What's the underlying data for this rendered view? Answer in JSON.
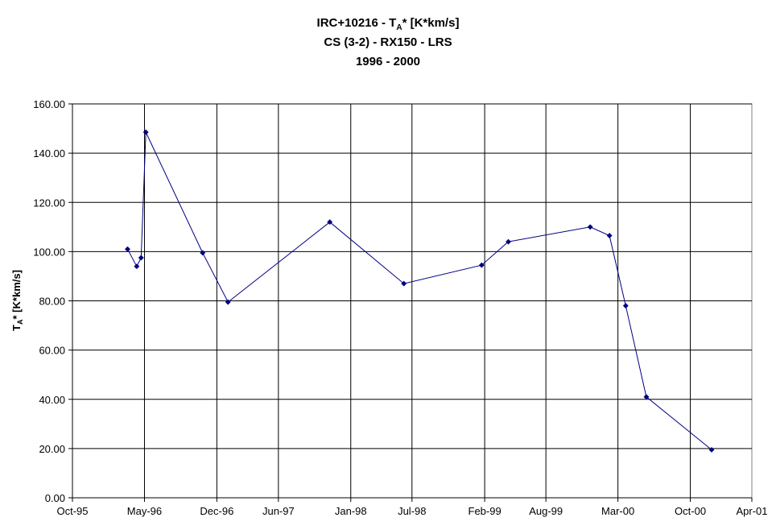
{
  "chart_data": {
    "type": "line",
    "title_lines": {
      "line1_prefix": "IRC+10216 - T",
      "line1_sub": "A",
      "line1_suffix": "* [K*km/s]",
      "line2": "CS (3-2) - RX150 - LRS",
      "line3": "1996 - 2000"
    },
    "ylabel": {
      "prefix": "T",
      "sub": "A",
      "suffix": "* [K*km/s]"
    },
    "xlabel": "",
    "x_tick_labels": [
      "Oct-95",
      "May-96",
      "Dec-96",
      "Jun-97",
      "Jan-98",
      "Jul-98",
      "Feb-99",
      "Aug-99",
      "Mar-00",
      "Oct-00",
      "Apr-01"
    ],
    "y_tick_labels": [
      "0.00",
      "20.00",
      "40.00",
      "60.00",
      "80.00",
      "100.00",
      "120.00",
      "140.00",
      "160.00"
    ],
    "ylim": [
      0,
      160
    ],
    "grid": true,
    "legend": "none",
    "series": [
      {
        "color": "#000080",
        "marker": "diamond",
        "points": [
          {
            "x": "1996-03-12",
            "y": 101.0
          },
          {
            "x": "1996-04-08",
            "y": 94.0
          },
          {
            "x": "1996-04-21",
            "y": 97.5
          },
          {
            "x": "1996-05-05",
            "y": 148.5
          },
          {
            "x": "1996-10-20",
            "y": 99.5
          },
          {
            "x": "1997-01-03",
            "y": 79.5
          },
          {
            "x": "1997-10-31",
            "y": 112.0
          },
          {
            "x": "1998-06-07",
            "y": 87.0
          },
          {
            "x": "1999-01-23",
            "y": 94.5
          },
          {
            "x": "1999-04-12",
            "y": 104.0
          },
          {
            "x": "1999-12-10",
            "y": 110.0
          },
          {
            "x": "2000-02-05",
            "y": 106.5
          },
          {
            "x": "2000-03-24",
            "y": 78.0
          },
          {
            "x": "2000-05-24",
            "y": 41.0
          },
          {
            "x": "2000-12-03",
            "y": 19.5
          }
        ]
      }
    ]
  }
}
